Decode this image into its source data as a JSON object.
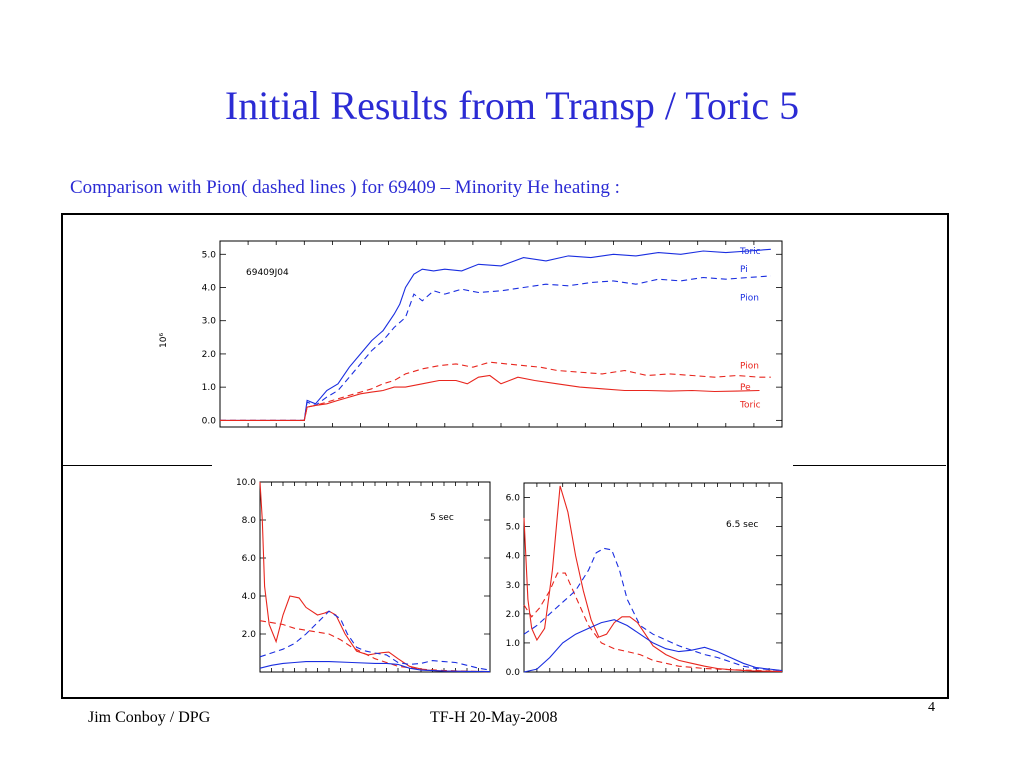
{
  "slide": {
    "title": "Initial Results from Transp / Toric 5",
    "subtitle": "Comparison with Pion( dashed lines ) for 69409 – Minority He heating :",
    "footer_left": "Jim Conboy / DPG",
    "footer_center": "TF-H  20-May-2008",
    "page_number": "4"
  },
  "colors": {
    "blue": "#1a2ee0",
    "red": "#e8261e",
    "title": "#2b2bd4"
  },
  "chart_data": [
    {
      "type": "line",
      "annotation": "69409J04",
      "ylabel": "10⁶",
      "xlim": [
        0,
        10
      ],
      "ylim": [
        -0.2,
        5.4
      ],
      "yticks": [
        0.0,
        1.0,
        2.0,
        3.0,
        4.0,
        5.0
      ],
      "ytick_labels": [
        "0.0",
        "1.0",
        "2.0",
        "3.0",
        "4.0",
        "5.0"
      ],
      "series_labels": [
        {
          "text": "Toric",
          "y": 5.1,
          "color": "#1a2ee0"
        },
        {
          "text": "Pi",
          "y": 4.55,
          "color": "#1a2ee0"
        },
        {
          "text": "Pion",
          "y": 3.7,
          "color": "#1a2ee0"
        },
        {
          "text": "Pion",
          "y": 1.65,
          "color": "#e8261e"
        },
        {
          "text": "Pe",
          "y": 1.0,
          "color": "#e8261e"
        },
        {
          "text": "Toric",
          "y": 0.48,
          "color": "#e8261e"
        }
      ],
      "series": [
        {
          "color": "#1a2ee0",
          "dash": false,
          "x": [
            0,
            1.5,
            1.55,
            1.7,
            1.9,
            2.1,
            2.3,
            2.5,
            2.7,
            2.9,
            3.1,
            3.2,
            3.3,
            3.45,
            3.6,
            3.8,
            4.0,
            4.3,
            4.6,
            5.0,
            5.4,
            5.8,
            6.2,
            6.6,
            7.0,
            7.4,
            7.8,
            8.2,
            8.6,
            9.0,
            9.4,
            9.8
          ],
          "y": [
            0,
            0,
            0.6,
            0.5,
            0.9,
            1.1,
            1.6,
            2.0,
            2.4,
            2.7,
            3.2,
            3.5,
            4.0,
            4.4,
            4.55,
            4.5,
            4.55,
            4.5,
            4.7,
            4.65,
            4.9,
            4.8,
            4.95,
            4.9,
            5.0,
            4.95,
            5.05,
            5.0,
            5.1,
            5.05,
            5.1,
            5.15
          ]
        },
        {
          "color": "#1a2ee0",
          "dash": true,
          "x": [
            0,
            1.5,
            1.55,
            1.7,
            1.9,
            2.1,
            2.3,
            2.5,
            2.7,
            2.9,
            3.1,
            3.3,
            3.45,
            3.6,
            3.8,
            4.0,
            4.3,
            4.6,
            5.0,
            5.4,
            5.8,
            6.2,
            6.6,
            7.0,
            7.4,
            7.8,
            8.2,
            8.6,
            9.0,
            9.4,
            9.8
          ],
          "y": [
            0,
            0,
            0.55,
            0.45,
            0.7,
            0.9,
            1.3,
            1.7,
            2.1,
            2.4,
            2.8,
            3.1,
            3.8,
            3.6,
            3.9,
            3.8,
            3.95,
            3.85,
            3.9,
            4.0,
            4.1,
            4.05,
            4.15,
            4.2,
            4.1,
            4.25,
            4.2,
            4.3,
            4.25,
            4.3,
            4.35
          ]
        },
        {
          "color": "#e8261e",
          "dash": false,
          "x": [
            0,
            1.5,
            1.55,
            1.7,
            1.9,
            2.1,
            2.3,
            2.5,
            2.7,
            2.9,
            3.1,
            3.3,
            3.6,
            3.9,
            4.2,
            4.4,
            4.6,
            4.8,
            5.0,
            5.3,
            5.6,
            6.0,
            6.4,
            6.8,
            7.2,
            7.6,
            8.0,
            8.4,
            8.8,
            9.2,
            9.6
          ],
          "y": [
            0,
            0,
            0.4,
            0.45,
            0.5,
            0.6,
            0.7,
            0.8,
            0.85,
            0.9,
            1.0,
            1.0,
            1.1,
            1.2,
            1.2,
            1.1,
            1.3,
            1.35,
            1.1,
            1.3,
            1.2,
            1.1,
            1.0,
            0.95,
            0.9,
            0.9,
            0.88,
            0.9,
            0.87,
            0.88,
            0.9
          ]
        },
        {
          "color": "#e8261e",
          "dash": true,
          "x": [
            0,
            1.5,
            1.55,
            1.7,
            1.9,
            2.1,
            2.3,
            2.5,
            2.7,
            2.9,
            3.1,
            3.3,
            3.6,
            3.9,
            4.2,
            4.5,
            4.8,
            5.1,
            5.4,
            5.7,
            6.0,
            6.4,
            6.8,
            7.2,
            7.6,
            8.0,
            8.4,
            8.8,
            9.2,
            9.6,
            9.8
          ],
          "y": [
            0,
            0,
            0.4,
            0.45,
            0.55,
            0.65,
            0.75,
            0.85,
            0.95,
            1.1,
            1.2,
            1.4,
            1.55,
            1.65,
            1.7,
            1.6,
            1.75,
            1.7,
            1.65,
            1.6,
            1.5,
            1.45,
            1.4,
            1.5,
            1.35,
            1.4,
            1.35,
            1.3,
            1.35,
            1.3,
            1.3
          ]
        }
      ]
    },
    {
      "type": "line",
      "annotation": "5 sec",
      "xlim": [
        0,
        1
      ],
      "ylim": [
        0,
        10.0
      ],
      "yticks": [
        2.0,
        4.0,
        6.0,
        8.0,
        10.0
      ],
      "ytick_labels": [
        "2.0",
        "4.0",
        "6.0",
        "8.0",
        "10.0"
      ],
      "series": [
        {
          "color": "#e8261e",
          "dash": false,
          "x": [
            0,
            0.01,
            0.02,
            0.04,
            0.07,
            0.1,
            0.13,
            0.17,
            0.2,
            0.25,
            0.28,
            0.3,
            0.33,
            0.37,
            0.42,
            0.47,
            0.52,
            0.56,
            0.6,
            0.65,
            0.72,
            0.8,
            0.9,
            1.0
          ],
          "y": [
            10,
            8,
            4.5,
            2.5,
            1.6,
            3.0,
            4.0,
            3.9,
            3.4,
            3.0,
            3.1,
            3.2,
            3.0,
            2.0,
            1.1,
            0.9,
            1.0,
            1.05,
            0.7,
            0.3,
            0.1,
            0.05,
            0.03,
            0.02
          ]
        },
        {
          "color": "#e8261e",
          "dash": true,
          "x": [
            0,
            0.05,
            0.1,
            0.15,
            0.2,
            0.25,
            0.3,
            0.35,
            0.4,
            0.45,
            0.5,
            0.55,
            0.6,
            0.7,
            0.8,
            0.9,
            1.0
          ],
          "y": [
            2.7,
            2.6,
            2.5,
            2.3,
            2.2,
            2.1,
            2.0,
            1.7,
            1.3,
            1.0,
            0.7,
            0.5,
            0.3,
            0.15,
            0.08,
            0.04,
            0.02
          ]
        },
        {
          "color": "#1a2ee0",
          "dash": true,
          "x": [
            0,
            0.05,
            0.1,
            0.15,
            0.2,
            0.25,
            0.3,
            0.35,
            0.38,
            0.42,
            0.46,
            0.5,
            0.55,
            0.6,
            0.65,
            0.7,
            0.75,
            0.8,
            0.85,
            0.9,
            0.95,
            1.0
          ],
          "y": [
            0.8,
            1.0,
            1.2,
            1.5,
            2.0,
            2.6,
            3.2,
            2.8,
            2.0,
            1.3,
            1.1,
            1.0,
            0.9,
            0.5,
            0.4,
            0.45,
            0.6,
            0.55,
            0.5,
            0.35,
            0.2,
            0.1
          ]
        },
        {
          "color": "#1a2ee0",
          "dash": false,
          "x": [
            0,
            0.05,
            0.1,
            0.15,
            0.2,
            0.3,
            0.4,
            0.5,
            0.55,
            0.6,
            0.65,
            0.7,
            0.8,
            0.9,
            1.0
          ],
          "y": [
            0.2,
            0.35,
            0.45,
            0.5,
            0.55,
            0.55,
            0.5,
            0.45,
            0.45,
            0.4,
            0.2,
            0.1,
            0.05,
            0.03,
            0.02
          ]
        }
      ]
    },
    {
      "type": "line",
      "annotation": "6.5 sec",
      "xlim": [
        0,
        1
      ],
      "ylim": [
        0,
        6.5
      ],
      "yticks": [
        0.0,
        1.0,
        2.0,
        3.0,
        4.0,
        5.0,
        6.0
      ],
      "ytick_labels": [
        "0.0",
        "1.0",
        "2.0",
        "3.0",
        "4.0",
        "5.0",
        "6.0"
      ],
      "series": [
        {
          "color": "#e8261e",
          "dash": false,
          "x": [
            0,
            0.015,
            0.03,
            0.05,
            0.08,
            0.11,
            0.14,
            0.17,
            0.2,
            0.23,
            0.26,
            0.29,
            0.32,
            0.35,
            0.38,
            0.41,
            0.44,
            0.47,
            0.5,
            0.55,
            0.6,
            0.65,
            0.7,
            0.75,
            0.8,
            0.85,
            0.9,
            1.0
          ],
          "y": [
            5.3,
            2.5,
            1.5,
            1.1,
            1.5,
            3.5,
            6.4,
            5.5,
            4.0,
            2.8,
            1.8,
            1.2,
            1.3,
            1.7,
            1.9,
            1.9,
            1.7,
            1.3,
            0.9,
            0.6,
            0.4,
            0.3,
            0.2,
            0.12,
            0.08,
            0.05,
            0.03,
            0.02
          ]
        },
        {
          "color": "#e8261e",
          "dash": true,
          "x": [
            0,
            0.03,
            0.06,
            0.1,
            0.13,
            0.16,
            0.2,
            0.25,
            0.3,
            0.35,
            0.4,
            0.45,
            0.5,
            0.55,
            0.6,
            0.7,
            0.8,
            0.9,
            1.0
          ],
          "y": [
            2.3,
            1.9,
            2.2,
            2.8,
            3.4,
            3.4,
            2.6,
            1.6,
            1.0,
            0.8,
            0.7,
            0.6,
            0.4,
            0.3,
            0.2,
            0.12,
            0.08,
            0.05,
            0.02
          ]
        },
        {
          "color": "#1a2ee0",
          "dash": true,
          "x": [
            0,
            0.05,
            0.1,
            0.15,
            0.2,
            0.25,
            0.28,
            0.31,
            0.34,
            0.37,
            0.4,
            0.45,
            0.5,
            0.55,
            0.6,
            0.65,
            0.7,
            0.75,
            0.8,
            0.85,
            0.9,
            1.0
          ],
          "y": [
            1.3,
            1.6,
            2.0,
            2.4,
            2.8,
            3.5,
            4.1,
            4.25,
            4.2,
            3.5,
            2.5,
            1.6,
            1.3,
            1.1,
            0.9,
            0.75,
            0.6,
            0.5,
            0.35,
            0.2,
            0.12,
            0.05
          ]
        },
        {
          "color": "#1a2ee0",
          "dash": false,
          "x": [
            0,
            0.05,
            0.1,
            0.15,
            0.2,
            0.25,
            0.3,
            0.35,
            0.4,
            0.45,
            0.5,
            0.55,
            0.6,
            0.65,
            0.7,
            0.75,
            0.8,
            0.85,
            0.9,
            1.0
          ],
          "y": [
            0,
            0.1,
            0.5,
            1.0,
            1.3,
            1.5,
            1.7,
            1.8,
            1.6,
            1.3,
            1.0,
            0.8,
            0.7,
            0.75,
            0.85,
            0.7,
            0.5,
            0.3,
            0.15,
            0.05
          ]
        }
      ]
    }
  ]
}
